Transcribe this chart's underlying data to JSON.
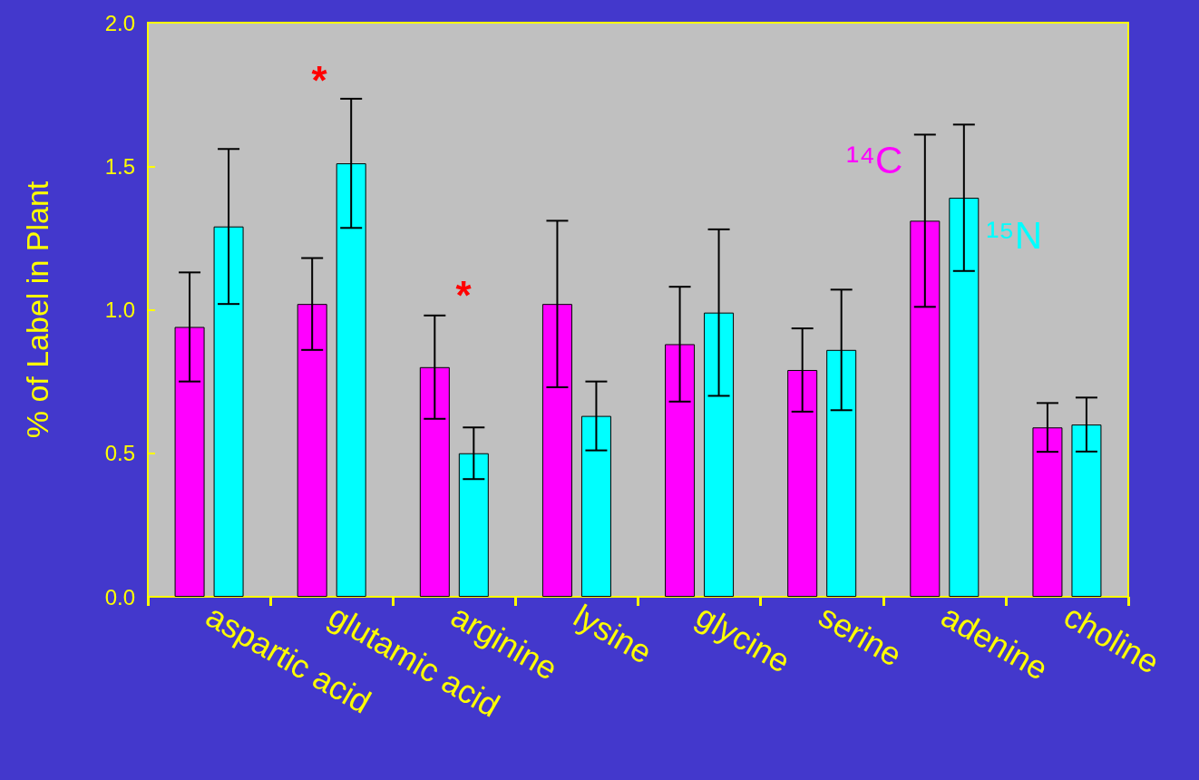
{
  "chart_data": {
    "type": "bar",
    "ylabel": "% of Label in Plant",
    "categories": [
      "aspartic acid",
      "glutamic acid",
      "arginine",
      "lysine",
      "glycine",
      "serine",
      "adenine",
      "choline"
    ],
    "series": [
      {
        "name": "¹⁴C",
        "color": "#ff00ff",
        "values": [
          0.94,
          1.02,
          0.8,
          1.02,
          0.88,
          0.79,
          1.31,
          0.59
        ],
        "errors": [
          0.19,
          0.16,
          0.18,
          0.29,
          0.2,
          0.145,
          0.3,
          0.085
        ]
      },
      {
        "name": "¹⁵N",
        "color": "#00ffff",
        "values": [
          1.29,
          1.51,
          0.5,
          0.63,
          0.99,
          0.86,
          1.39,
          0.6
        ],
        "errors": [
          0.27,
          0.225,
          0.09,
          0.12,
          0.29,
          0.21,
          0.255,
          0.094
        ]
      }
    ],
    "ylim": [
      0,
      2
    ],
    "yticks": [
      {
        "value": 0,
        "label": "0.0"
      },
      {
        "value": 0.5,
        "label": "0.5"
      },
      {
        "value": 1,
        "label": "1.0"
      },
      {
        "value": 1.5,
        "label": "1.5"
      },
      {
        "value": 2,
        "label": "2.0"
      }
    ],
    "annotations": [
      "*",
      "*"
    ]
  }
}
